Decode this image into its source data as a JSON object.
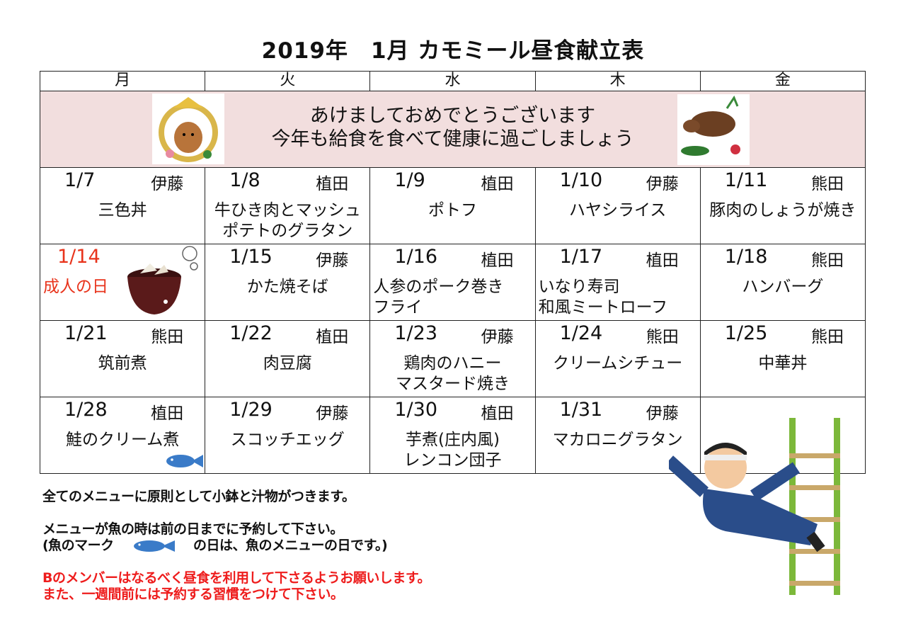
{
  "title": "2019年　1月 カモミール昼食献立表",
  "weekdays": [
    "月",
    "火",
    "水",
    "木",
    "金"
  ],
  "banner": {
    "line1": "あけましておめでとうございます",
    "line2": "今年も給食を食べて健康に過ごしましょう"
  },
  "weeks": [
    [
      {
        "date": "1/7",
        "staff": "伊藤",
        "menu": "三色丼"
      },
      {
        "date": "1/8",
        "staff": "植田",
        "menu": "牛ひき肉とマッシュ\nポテトのグラタン"
      },
      {
        "date": "1/9",
        "staff": "植田",
        "menu": "ポトフ"
      },
      {
        "date": "1/10",
        "staff": "伊藤",
        "menu": "ハヤシライス"
      },
      {
        "date": "1/11",
        "staff": "熊田",
        "menu": "豚肉のしょうが焼き"
      }
    ],
    [
      {
        "date": "1/14",
        "staff": "",
        "menu": "成人の日"
      },
      {
        "date": "1/15",
        "staff": "伊藤",
        "menu": "かた焼そば"
      },
      {
        "date": "1/16",
        "staff": "植田",
        "menu": "人参のポーク巻き\nフライ"
      },
      {
        "date": "1/17",
        "staff": "植田",
        "menu": "いなり寿司\n和風ミートローフ"
      },
      {
        "date": "1/18",
        "staff": "熊田",
        "menu": "ハンバーグ"
      }
    ],
    [
      {
        "date": "1/21",
        "staff": "熊田",
        "menu": "筑前煮"
      },
      {
        "date": "1/22",
        "staff": "植田",
        "menu": "肉豆腐"
      },
      {
        "date": "1/23",
        "staff": "伊藤",
        "menu": "鶏肉のハニー\nマスタード焼き"
      },
      {
        "date": "1/24",
        "staff": "熊田",
        "menu": "クリームシチュー"
      },
      {
        "date": "1/25",
        "staff": "熊田",
        "menu": "中華丼"
      }
    ],
    [
      {
        "date": "1/28",
        "staff": "植田",
        "menu": "鮭のクリーム煮"
      },
      {
        "date": "1/29",
        "staff": "伊藤",
        "menu": "スコッチエッグ"
      },
      {
        "date": "1/30",
        "staff": "植田",
        "menu": "芋煮(庄内風)\nレンコン団子"
      },
      {
        "date": "1/31",
        "staff": "伊藤",
        "menu": "マカロニグラタン"
      },
      {
        "date": "",
        "staff": "",
        "menu": ""
      }
    ]
  ],
  "notes": {
    "line1": "全てのメニューに原則として小鉢と汁物がつきます。",
    "line2": "メニューが魚の時は前の日までに予約して下さい。",
    "line3a": "(魚のマーク",
    "line3b": "の日は、魚のメニューの日です。)",
    "line4": "Bのメンバーはなるべく昼食を利用して下さるようお願いします。",
    "line5": "また、一週間前には予約する習慣をつけて下さい。"
  },
  "colors": {
    "holiday": "#e8341c",
    "banner_bg": "#f2dede",
    "fish": "#3a7bc8"
  }
}
